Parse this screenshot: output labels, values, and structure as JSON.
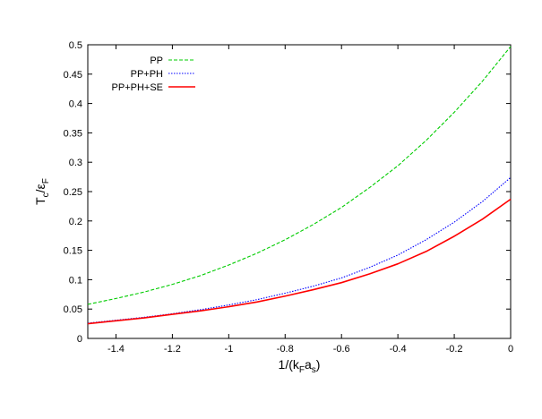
{
  "chart_data": {
    "type": "line",
    "xlabel": {
      "main": "1/(k",
      "s1": "F",
      "mid": "a",
      "s2": "s",
      "end": ")"
    },
    "ylabel": {
      "main": "T",
      "s1": "c",
      "mid": "/ε",
      "s2": "F"
    },
    "xlim": [
      -1.5,
      0
    ],
    "ylim": [
      0,
      0.5
    ],
    "xticks": [
      -1.4,
      -1.2,
      -1,
      -0.8,
      -0.6,
      -0.4,
      -0.2,
      0
    ],
    "yticks": [
      0,
      0.05,
      0.1,
      0.15,
      0.2,
      0.25,
      0.3,
      0.35,
      0.4,
      0.45,
      0.5
    ],
    "grid": false,
    "legend_position": "top-left",
    "series": [
      {
        "name": "PP",
        "color": "#00cc00",
        "dash": "dashed",
        "x": [
          -1.5,
          -1.4,
          -1.3,
          -1.2,
          -1.1,
          -1.0,
          -0.9,
          -0.8,
          -0.7,
          -0.6,
          -0.5,
          -0.4,
          -0.3,
          -0.2,
          -0.1,
          0
        ],
        "y": [
          0.058,
          0.068,
          0.079,
          0.092,
          0.107,
          0.125,
          0.145,
          0.168,
          0.194,
          0.223,
          0.257,
          0.294,
          0.337,
          0.385,
          0.438,
          0.497
        ]
      },
      {
        "name": "PP+PH",
        "color": "#0000ff",
        "dash": "dotted",
        "x": [
          -1.5,
          -1.4,
          -1.3,
          -1.2,
          -1.1,
          -1.0,
          -0.9,
          -0.8,
          -0.7,
          -0.6,
          -0.5,
          -0.4,
          -0.3,
          -0.2,
          -0.1,
          0
        ],
        "y": [
          0.026,
          0.031,
          0.036,
          0.042,
          0.049,
          0.057,
          0.066,
          0.077,
          0.089,
          0.103,
          0.121,
          0.142,
          0.168,
          0.198,
          0.233,
          0.274
        ]
      },
      {
        "name": "PP+PH+SE",
        "color": "#ff0000",
        "dash": "solid",
        "x": [
          -1.5,
          -1.4,
          -1.3,
          -1.2,
          -1.1,
          -1.0,
          -0.9,
          -0.8,
          -0.7,
          -0.6,
          -0.5,
          -0.4,
          -0.3,
          -0.2,
          -0.1,
          0
        ],
        "y": [
          0.025,
          0.03,
          0.035,
          0.041,
          0.047,
          0.054,
          0.062,
          0.072,
          0.083,
          0.095,
          0.11,
          0.127,
          0.148,
          0.174,
          0.203,
          0.237
        ]
      }
    ]
  }
}
